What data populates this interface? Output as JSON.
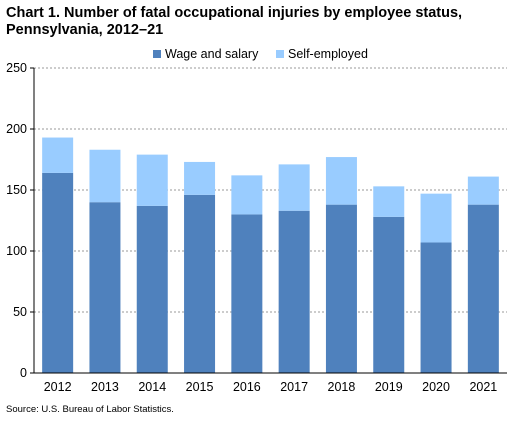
{
  "title": "Chart 1. Number of fatal occupational injuries by employee status, Pennsylvania, 2012–21",
  "source": "Source: U.S. Bureau of Labor Statistics.",
  "colors": {
    "wage": "#4f81bd",
    "self": "#99ccff",
    "grid": "#999999",
    "axis": "#000000"
  },
  "chart_data": {
    "type": "bar",
    "stacked": true,
    "categories": [
      "2012",
      "2013",
      "2014",
      "2015",
      "2016",
      "2017",
      "2018",
      "2019",
      "2020",
      "2021"
    ],
    "series": [
      {
        "name": "Wage and salary",
        "values": [
          164,
          140,
          137,
          146,
          130,
          133,
          138,
          128,
          107,
          138
        ]
      },
      {
        "name": "Self-employed",
        "values": [
          29,
          43,
          42,
          27,
          32,
          38,
          39,
          25,
          40,
          23
        ]
      }
    ],
    "ylim": [
      0,
      250
    ],
    "yticks": [
      "0",
      "50",
      "100",
      "150",
      "200",
      "250"
    ],
    "grid": true,
    "legend": "top-center"
  }
}
